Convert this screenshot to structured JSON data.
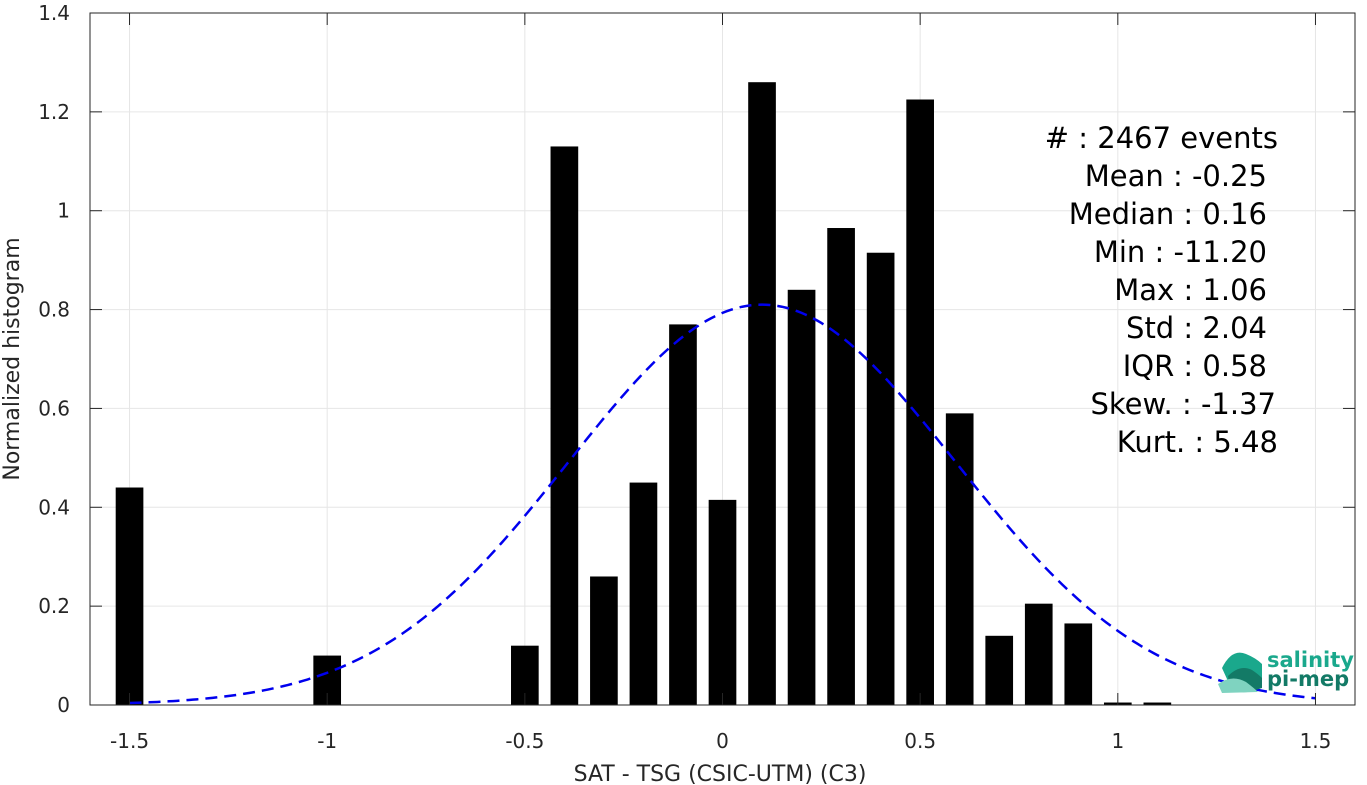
{
  "chart_data": {
    "type": "bar",
    "xlabel": "SAT - TSG (CSIC-UTM) (C3)",
    "ylabel": "Normalized histogram",
    "xlim": [
      -1.6,
      1.6
    ],
    "ylim": [
      0,
      1.4
    ],
    "x_ticks": [
      -1.5,
      -1,
      -0.5,
      0,
      0.5,
      1,
      1.5
    ],
    "x_tick_labels": [
      "-1.5",
      "-1",
      "-0.5",
      "0",
      "0.5",
      "1",
      "1.5"
    ],
    "y_ticks": [
      0,
      0.2,
      0.4,
      0.6,
      0.8,
      1,
      1.2,
      1.4
    ],
    "y_tick_labels": [
      "0",
      "0.2",
      "0.4",
      "0.6",
      "0.8",
      "1",
      "1.2",
      "1.4"
    ],
    "grid": true,
    "bar_color": "#000000",
    "bar_width": 0.07,
    "bins": [
      -1.5,
      -1.0,
      -0.5,
      -0.4,
      -0.3,
      -0.2,
      -0.1,
      0.0,
      0.1,
      0.2,
      0.3,
      0.4,
      0.5,
      0.6,
      0.7,
      0.8,
      0.9,
      1.0,
      1.1
    ],
    "values": [
      0.44,
      0.1,
      0.12,
      1.13,
      0.26,
      0.45,
      0.77,
      0.415,
      1.26,
      0.84,
      0.965,
      0.915,
      1.225,
      0.59,
      0.14,
      0.205,
      0.165,
      0.005,
      0.005
    ],
    "fit_curve": {
      "style": "dashed",
      "color": "#0000ee",
      "mu": 0.1,
      "sigma": 0.49,
      "peak": 0.81,
      "x_range": [
        -1.5,
        1.5
      ]
    },
    "annotation": [
      "#  : 2467 events",
      "Mean : -0.25",
      "Median : 0.16",
      "Min : -11.20",
      "Max : 1.06",
      "Std : 2.04",
      "IQR : 0.58",
      "Skew. : -1.37",
      "Kurt. : 5.48"
    ]
  },
  "logo": {
    "line1": "salinity",
    "line2": "pi-mep",
    "color_main": "#1aa88c",
    "color_dark": "#137a66"
  }
}
